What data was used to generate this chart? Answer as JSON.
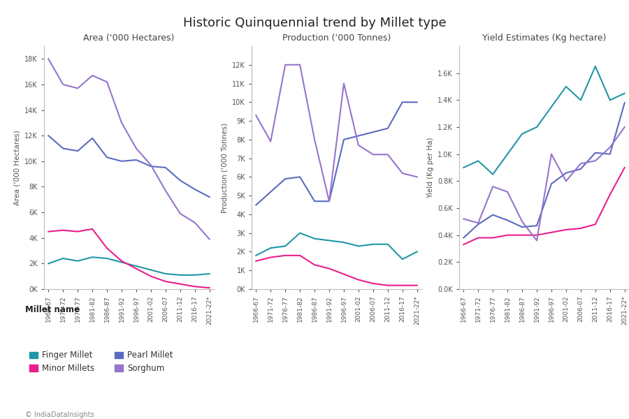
{
  "title": "Historic Quinquennial trend by Millet type",
  "x_labels": [
    "1966-67",
    "1971-72",
    "1976-77",
    "1981-82",
    "1986-87",
    "1991-92",
    "1996-97",
    "2001-02",
    "2006-07",
    "2011-12",
    "2016-17",
    "2021-22*"
  ],
  "colors": {
    "Finger Millet": "#2196A6",
    "Minor Millets": "#E91E8C",
    "Pearl Millet": "#5C6BC0",
    "Sorghum": "#9575CD"
  },
  "area": {
    "Finger Millet": [
      2000,
      2400,
      2200,
      2500,
      2400,
      2100,
      1800,
      1500,
      1200,
      1100,
      1100,
      1200
    ],
    "Minor Millets": [
      4500,
      4600,
      4500,
      4700,
      3200,
      2200,
      1600,
      1000,
      600,
      400,
      200,
      100
    ],
    "Pearl Millet": [
      12000,
      11000,
      10800,
      11800,
      10300,
      10000,
      10100,
      9600,
      9500,
      8500,
      7800,
      7200
    ],
    "Sorghum": [
      18000,
      16000,
      15700,
      16700,
      16200,
      13000,
      11000,
      9700,
      7700,
      5900,
      5200,
      3900
    ]
  },
  "production": {
    "Finger Millet": [
      1800,
      2200,
      2300,
      3000,
      2700,
      2600,
      2500,
      2300,
      2400,
      2400,
      1600,
      2000
    ],
    "Minor Millets": [
      1500,
      1700,
      1800,
      1800,
      1300,
      1100,
      800,
      500,
      300,
      200,
      200,
      200
    ],
    "Pearl Millet": [
      4500,
      5200,
      5900,
      6000,
      4700,
      4700,
      8000,
      8200,
      8400,
      8600,
      10000,
      10000
    ],
    "Sorghum": [
      9300,
      7900,
      12000,
      12000,
      8000,
      4700,
      11000,
      7700,
      7200,
      7200,
      6200,
      6000
    ]
  },
  "yield_est": {
    "Finger Millet": [
      900,
      950,
      850,
      1000,
      1150,
      1200,
      1350,
      1500,
      1400,
      1650,
      1400,
      1450
    ],
    "Minor Millets": [
      330,
      380,
      380,
      400,
      400,
      400,
      420,
      440,
      450,
      480,
      700,
      900
    ],
    "Pearl Millet": [
      380,
      480,
      550,
      510,
      460,
      470,
      780,
      860,
      890,
      1010,
      1000,
      1380
    ],
    "Sorghum": [
      520,
      490,
      760,
      720,
      500,
      360,
      1000,
      800,
      930,
      950,
      1050,
      1200
    ]
  },
  "area_ylim": [
    0,
    19000
  ],
  "area_yticks": [
    0,
    2000,
    4000,
    6000,
    8000,
    10000,
    12000,
    14000,
    16000,
    18000
  ],
  "prod_ylim": [
    0,
    13000
  ],
  "prod_yticks": [
    0,
    1000,
    2000,
    3000,
    4000,
    5000,
    6000,
    7000,
    8000,
    9000,
    10000,
    11000,
    12000
  ],
  "yield_ylim": [
    0,
    1800
  ],
  "yield_yticks": [
    0,
    200,
    400,
    600,
    800,
    1000,
    1200,
    1400,
    1600
  ],
  "subplot_titles": [
    "Area (‘000 Hectares)",
    "Production (‘000 Tonnes)",
    "Yield Estimates (Kg hectare)"
  ],
  "ylabel_area": "Area (‘000 Hectares)",
  "ylabel_prod": "Production (‘000 Tonnes)",
  "ylabel_yield": "Yield (Kg per Ha)",
  "legend_label": "Millet name",
  "footer": "© IndiaDataInsights"
}
